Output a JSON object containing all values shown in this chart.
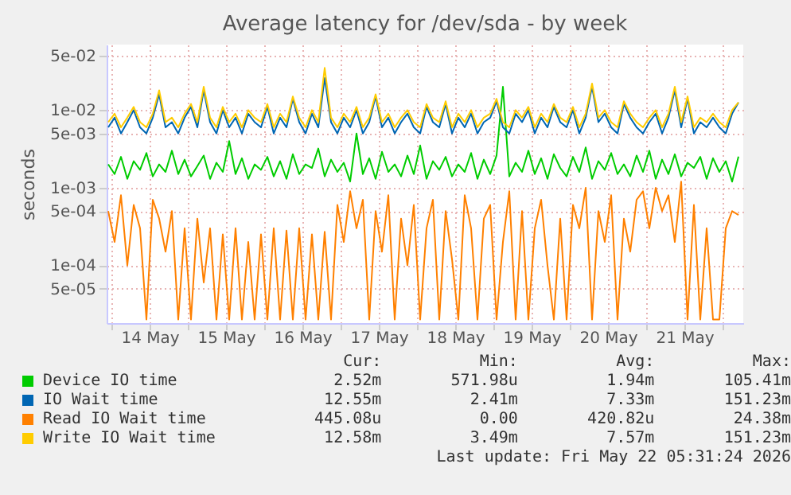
{
  "chart_data": {
    "type": "line",
    "title": "Average latency for /dev/sda - by week",
    "ylabel": "seconds",
    "log": true,
    "grid": true,
    "legend": "bottom",
    "xlim": [
      "2026-05-13T22:30",
      "2026-05-22T06:30"
    ],
    "xticks": [
      {
        "value": "2026-05-14T00:00",
        "label": null
      },
      {
        "value": "2026-05-14T12:00",
        "label": "14 May"
      },
      {
        "value": "2026-05-15T00:00",
        "label": null
      },
      {
        "value": "2026-05-15T12:00",
        "label": "15 May"
      },
      {
        "value": "2026-05-16T00:00",
        "label": null
      },
      {
        "value": "2026-05-16T12:00",
        "label": "16 May"
      },
      {
        "value": "2026-05-17T00:00",
        "label": null
      },
      {
        "value": "2026-05-17T12:00",
        "label": "17 May"
      },
      {
        "value": "2026-05-18T00:00",
        "label": null
      },
      {
        "value": "2026-05-18T12:00",
        "label": "18 May"
      },
      {
        "value": "2026-05-19T00:00",
        "label": null
      },
      {
        "value": "2026-05-19T12:00",
        "label": "19 May"
      },
      {
        "value": "2026-05-20T00:00",
        "label": null
      },
      {
        "value": "2026-05-20T12:00",
        "label": "20 May"
      },
      {
        "value": "2026-05-21T00:00",
        "label": null
      },
      {
        "value": "2026-05-21T12:00",
        "label": "21 May"
      },
      {
        "value": "2026-05-22T00:00",
        "label": null
      }
    ],
    "ylim": [
      1.8e-05,
      0.07
    ],
    "yticks": [
      {
        "value": 5e-05,
        "label": "5e-05"
      },
      {
        "value": 0.0001,
        "label": "1e-04"
      },
      {
        "value": 0.0005,
        "label": "5e-04"
      },
      {
        "value": 0.001,
        "label": "1e-03"
      },
      {
        "value": 0.005,
        "label": "5e-03"
      },
      {
        "value": 0.01,
        "label": "1e-02"
      },
      {
        "value": 0.05,
        "label": "5e-02"
      }
    ],
    "x": [
      "2026-05-13T23:00",
      "2026-05-14T01:00",
      "2026-05-14T03:00",
      "2026-05-14T05:00",
      "2026-05-14T07:00",
      "2026-05-14T09:00",
      "2026-05-14T11:00",
      "2026-05-14T13:00",
      "2026-05-14T15:00",
      "2026-05-14T17:00",
      "2026-05-14T19:00",
      "2026-05-14T21:00",
      "2026-05-14T23:00",
      "2026-05-15T01:00",
      "2026-05-15T03:00",
      "2026-05-15T05:00",
      "2026-05-15T07:00",
      "2026-05-15T09:00",
      "2026-05-15T11:00",
      "2026-05-15T13:00",
      "2026-05-15T15:00",
      "2026-05-15T17:00",
      "2026-05-15T19:00",
      "2026-05-15T21:00",
      "2026-05-15T23:00",
      "2026-05-16T01:00",
      "2026-05-16T03:00",
      "2026-05-16T05:00",
      "2026-05-16T07:00",
      "2026-05-16T09:00",
      "2026-05-16T11:00",
      "2026-05-16T13:00",
      "2026-05-16T15:00",
      "2026-05-16T17:00",
      "2026-05-16T19:00",
      "2026-05-16T21:00",
      "2026-05-16T23:00",
      "2026-05-17T01:00",
      "2026-05-17T03:00",
      "2026-05-17T05:00",
      "2026-05-17T07:00",
      "2026-05-17T09:00",
      "2026-05-17T11:00",
      "2026-05-17T13:00",
      "2026-05-17T15:00",
      "2026-05-17T17:00",
      "2026-05-17T19:00",
      "2026-05-17T21:00",
      "2026-05-17T23:00",
      "2026-05-18T01:00",
      "2026-05-18T03:00",
      "2026-05-18T05:00",
      "2026-05-18T07:00",
      "2026-05-18T09:00",
      "2026-05-18T11:00",
      "2026-05-18T13:00",
      "2026-05-18T15:00",
      "2026-05-18T17:00",
      "2026-05-18T19:00",
      "2026-05-18T21:00",
      "2026-05-18T23:00",
      "2026-05-19T01:00",
      "2026-05-19T03:00",
      "2026-05-19T05:00",
      "2026-05-19T07:00",
      "2026-05-19T09:00",
      "2026-05-19T11:00",
      "2026-05-19T13:00",
      "2026-05-19T15:00",
      "2026-05-19T17:00",
      "2026-05-19T19:00",
      "2026-05-19T21:00",
      "2026-05-19T23:00",
      "2026-05-20T01:00",
      "2026-05-20T03:00",
      "2026-05-20T05:00",
      "2026-05-20T07:00",
      "2026-05-20T09:00",
      "2026-05-20T11:00",
      "2026-05-20T13:00",
      "2026-05-20T15:00",
      "2026-05-20T17:00",
      "2026-05-20T19:00",
      "2026-05-20T21:00",
      "2026-05-20T23:00",
      "2026-05-21T01:00",
      "2026-05-21T03:00",
      "2026-05-21T05:00",
      "2026-05-21T07:00",
      "2026-05-21T09:00",
      "2026-05-21T11:00",
      "2026-05-21T13:00",
      "2026-05-21T15:00",
      "2026-05-21T17:00",
      "2026-05-21T19:00",
      "2026-05-21T21:00",
      "2026-05-21T23:00",
      "2026-05-22T01:00",
      "2026-05-22T03:00",
      "2026-05-22T05:00"
    ],
    "series": [
      {
        "name": "Device IO time",
        "color": "#00cc00",
        "values": [
          0.002,
          0.0015,
          0.0025,
          0.0013,
          0.0022,
          0.0017,
          0.0028,
          0.0014,
          0.002,
          0.0016,
          0.003,
          0.0015,
          0.0023,
          0.0014,
          0.0019,
          0.0026,
          0.0013,
          0.0021,
          0.0016,
          0.004,
          0.0015,
          0.0024,
          0.0013,
          0.002,
          0.0017,
          0.0025,
          0.0014,
          0.0022,
          0.0013,
          0.0027,
          0.0015,
          0.002,
          0.0018,
          0.0032,
          0.0014,
          0.0023,
          0.0016,
          0.0021,
          0.0012,
          0.005,
          0.0015,
          0.0024,
          0.0013,
          0.0029,
          0.0016,
          0.002,
          0.0014,
          0.0026,
          0.0015,
          0.0035,
          0.0013,
          0.0022,
          0.0017,
          0.0025,
          0.0014,
          0.002,
          0.0016,
          0.0028,
          0.0013,
          0.0023,
          0.0015,
          0.0026,
          0.02,
          0.0014,
          0.0021,
          0.0016,
          0.003,
          0.0015,
          0.0024,
          0.0013,
          0.0027,
          0.0018,
          0.0014,
          0.0025,
          0.0016,
          0.0033,
          0.0013,
          0.0022,
          0.0017,
          0.0028,
          0.0015,
          0.002,
          0.0014,
          0.0026,
          0.0016,
          0.003,
          0.0013,
          0.0023,
          0.0015,
          0.0027,
          0.0014,
          0.0021,
          0.0018,
          0.0025,
          0.0013,
          0.0024,
          0.0016,
          0.0022,
          0.0012,
          0.00252
        ]
      },
      {
        "name": "IO Wait time",
        "color": "#0066b3",
        "values": [
          0.006,
          0.008,
          0.005,
          0.007,
          0.01,
          0.006,
          0.005,
          0.008,
          0.016,
          0.006,
          0.007,
          0.005,
          0.008,
          0.011,
          0.006,
          0.018,
          0.007,
          0.005,
          0.01,
          0.006,
          0.008,
          0.005,
          0.009,
          0.007,
          0.006,
          0.011,
          0.005,
          0.008,
          0.006,
          0.014,
          0.007,
          0.005,
          0.009,
          0.006,
          0.026,
          0.007,
          0.005,
          0.008,
          0.006,
          0.01,
          0.005,
          0.007,
          0.015,
          0.006,
          0.008,
          0.005,
          0.007,
          0.009,
          0.006,
          0.005,
          0.011,
          0.007,
          0.006,
          0.012,
          0.005,
          0.008,
          0.006,
          0.009,
          0.005,
          0.007,
          0.008,
          0.013,
          0.006,
          0.005,
          0.009,
          0.007,
          0.01,
          0.005,
          0.008,
          0.006,
          0.011,
          0.007,
          0.006,
          0.01,
          0.005,
          0.008,
          0.02,
          0.007,
          0.009,
          0.006,
          0.005,
          0.012,
          0.008,
          0.006,
          0.005,
          0.007,
          0.009,
          0.005,
          0.008,
          0.018,
          0.006,
          0.014,
          0.005,
          0.007,
          0.006,
          0.008,
          0.006,
          0.005,
          0.009,
          0.01255
        ]
      },
      {
        "name": "Read IO Wait time",
        "color": "#ff8000",
        "values": [
          0.0005,
          0.0002,
          0.0008,
          0.0001,
          0.0006,
          0.0003,
          2e-05,
          0.0007,
          0.0004,
          0.00015,
          0.0005,
          2e-05,
          0.0003,
          2e-05,
          0.0004,
          6e-05,
          0.0003,
          2e-05,
          0.00025,
          2e-05,
          0.0003,
          2e-05,
          0.0002,
          2e-05,
          0.00025,
          2e-05,
          0.0003,
          2e-05,
          0.00028,
          2e-05,
          0.0003,
          2e-05,
          0.00025,
          2e-05,
          0.00027,
          2e-05,
          0.0006,
          0.0002,
          0.0009,
          0.0003,
          0.0007,
          2e-05,
          0.0005,
          0.00015,
          0.0008,
          2e-05,
          0.0004,
          0.0001,
          0.0006,
          2e-05,
          0.0003,
          0.0007,
          2e-05,
          0.0005,
          0.00012,
          2e-05,
          0.0008,
          0.0003,
          2e-05,
          0.0004,
          0.0006,
          2e-05,
          0.0002,
          0.0009,
          2e-05,
          0.0005,
          2e-05,
          0.0003,
          0.0007,
          0.0001,
          2e-05,
          0.0004,
          2e-05,
          0.0006,
          0.0003,
          0.001,
          2e-05,
          0.0005,
          0.0002,
          0.0008,
          2e-05,
          0.0004,
          0.00015,
          0.0007,
          0.0009,
          0.0003,
          0.001,
          0.0005,
          0.0008,
          0.0002,
          0.0012,
          2e-05,
          0.0006,
          2e-05,
          0.0003,
          2e-05,
          2e-05,
          0.0003,
          0.0005,
          0.000445
        ]
      },
      {
        "name": "Write IO Wait time",
        "color": "#ffcc00",
        "values": [
          0.007,
          0.009,
          0.006,
          0.008,
          0.011,
          0.007,
          0.006,
          0.009,
          0.018,
          0.007,
          0.008,
          0.006,
          0.009,
          0.012,
          0.007,
          0.02,
          0.008,
          0.006,
          0.011,
          0.007,
          0.009,
          0.006,
          0.01,
          0.008,
          0.007,
          0.012,
          0.006,
          0.009,
          0.007,
          0.015,
          0.008,
          0.006,
          0.01,
          0.007,
          0.035,
          0.008,
          0.006,
          0.009,
          0.007,
          0.011,
          0.006,
          0.008,
          0.016,
          0.007,
          0.009,
          0.006,
          0.008,
          0.01,
          0.007,
          0.006,
          0.012,
          0.008,
          0.007,
          0.013,
          0.006,
          0.009,
          0.007,
          0.01,
          0.006,
          0.008,
          0.009,
          0.014,
          0.007,
          0.006,
          0.01,
          0.008,
          0.011,
          0.006,
          0.009,
          0.007,
          0.012,
          0.008,
          0.007,
          0.011,
          0.006,
          0.009,
          0.022,
          0.008,
          0.01,
          0.007,
          0.006,
          0.013,
          0.009,
          0.007,
          0.006,
          0.008,
          0.01,
          0.006,
          0.009,
          0.02,
          0.007,
          0.015,
          0.006,
          0.008,
          0.007,
          0.009,
          0.007,
          0.006,
          0.01,
          0.0126
        ]
      }
    ],
    "annotations": [
      "Cur:",
      "Min:",
      "Avg:",
      "Max:",
      "2.52m",
      "571.98u",
      "1.94m",
      "105.41m",
      "12.55m",
      "2.41m",
      "7.33m",
      "151.23m",
      "445.08u",
      "0.00",
      "420.82u",
      "24.38m",
      "12.58m",
      "3.49m",
      "7.57m",
      "151.23m",
      "Last update: Fri May 22 05:31:24 2026"
    ]
  }
}
